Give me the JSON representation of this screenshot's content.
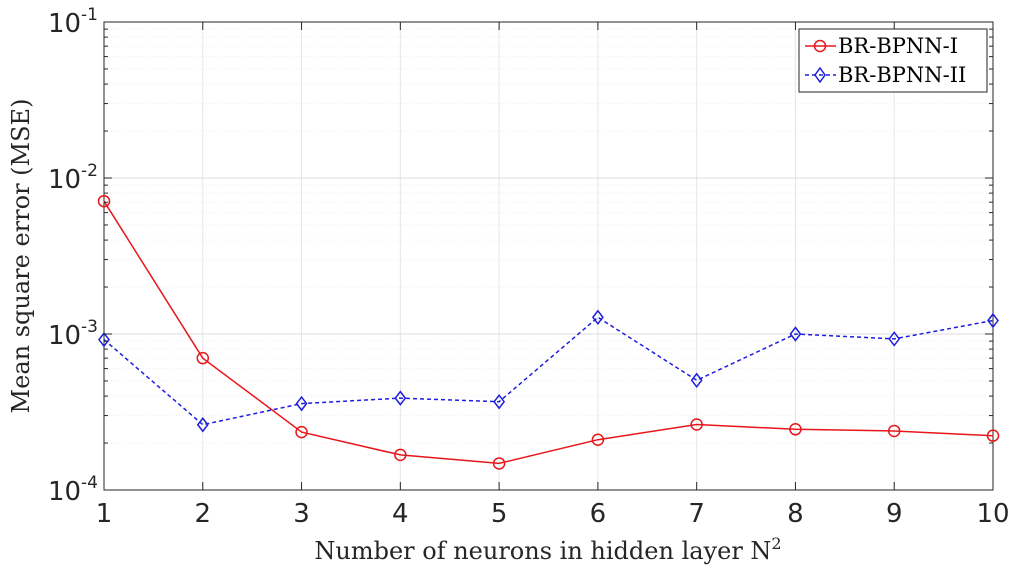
{
  "chart_data": {
    "type": "line",
    "title": "",
    "xlabel": "Number of neurons in hidden layer N",
    "xlabel_superscript": "2",
    "ylabel": "Mean square error (MSE)",
    "x": [
      1,
      2,
      3,
      4,
      5,
      6,
      7,
      8,
      9,
      10
    ],
    "xlim": [
      1,
      10
    ],
    "ylim": [
      0.0001,
      0.1
    ],
    "yscale": "log",
    "grid": true,
    "legend_position": "top-right",
    "x_ticks": [
      "1",
      "2",
      "3",
      "4",
      "5",
      "6",
      "7",
      "8",
      "9",
      "10"
    ],
    "y_ticks": [
      {
        "base": "10",
        "exp": "-4",
        "value": 0.0001
      },
      {
        "base": "10",
        "exp": "-3",
        "value": 0.001
      },
      {
        "base": "10",
        "exp": "-2",
        "value": 0.01
      },
      {
        "base": "10",
        "exp": "-1",
        "value": 0.1
      }
    ],
    "series": [
      {
        "name": "BR-BPNN-I",
        "color": "#e8161b",
        "marker": "circle",
        "line_style": "solid",
        "values": [
          0.0071,
          0.0007,
          0.000235,
          0.000168,
          0.000148,
          0.00021,
          0.000263,
          0.000245,
          0.000239,
          0.000223
        ]
      },
      {
        "name": "BR-BPNN-II",
        "color": "#1d1de0",
        "marker": "diamond",
        "line_style": "dashed",
        "values": [
          0.00092,
          0.000262,
          0.000358,
          0.000388,
          0.000368,
          0.00128,
          0.000505,
          0.001,
          0.00093,
          0.00122
        ]
      }
    ]
  }
}
